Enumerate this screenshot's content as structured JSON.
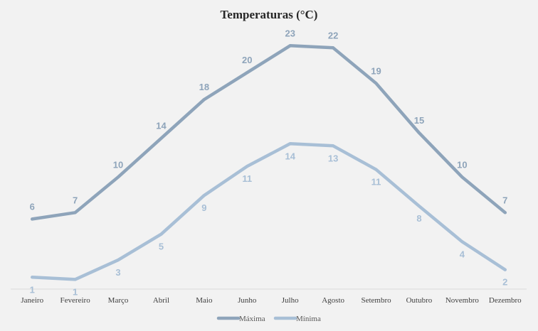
{
  "chart_data": {
    "type": "line",
    "title": "Temperaturas (°C)",
    "categories": [
      "Janeiro",
      "Fevereiro",
      "Março",
      "Abril",
      "Maio",
      "Junho",
      "Julho",
      "Agosto",
      "Setembro",
      "Outubro",
      "Novembro",
      "Dezembro"
    ],
    "series": [
      {
        "name": "Máxima",
        "values": [
          6.5,
          7.1,
          10.4,
          14.0,
          17.6,
          20.1,
          22.6,
          22.4,
          19.1,
          14.5,
          10.4,
          7.1
        ],
        "labels": [
          "6",
          "7",
          "10",
          "14",
          "18",
          "20",
          "23",
          "22",
          "19",
          "15",
          "10",
          "7"
        ],
        "color": "#8ea4ba"
      },
      {
        "name": "Mínima",
        "values": [
          1.1,
          0.9,
          2.7,
          5.1,
          8.7,
          11.4,
          13.5,
          13.3,
          11.1,
          7.7,
          4.4,
          1.8
        ],
        "labels": [
          "1",
          "1",
          "3",
          "5",
          "9",
          "11",
          "14",
          "13",
          "11",
          "8",
          "4",
          "2"
        ],
        "color": "#a8bfd6"
      }
    ],
    "xlabel": "",
    "ylabel": "",
    "ylim": [
      0,
      24.2
    ],
    "grid": false,
    "legend": "bottom"
  }
}
